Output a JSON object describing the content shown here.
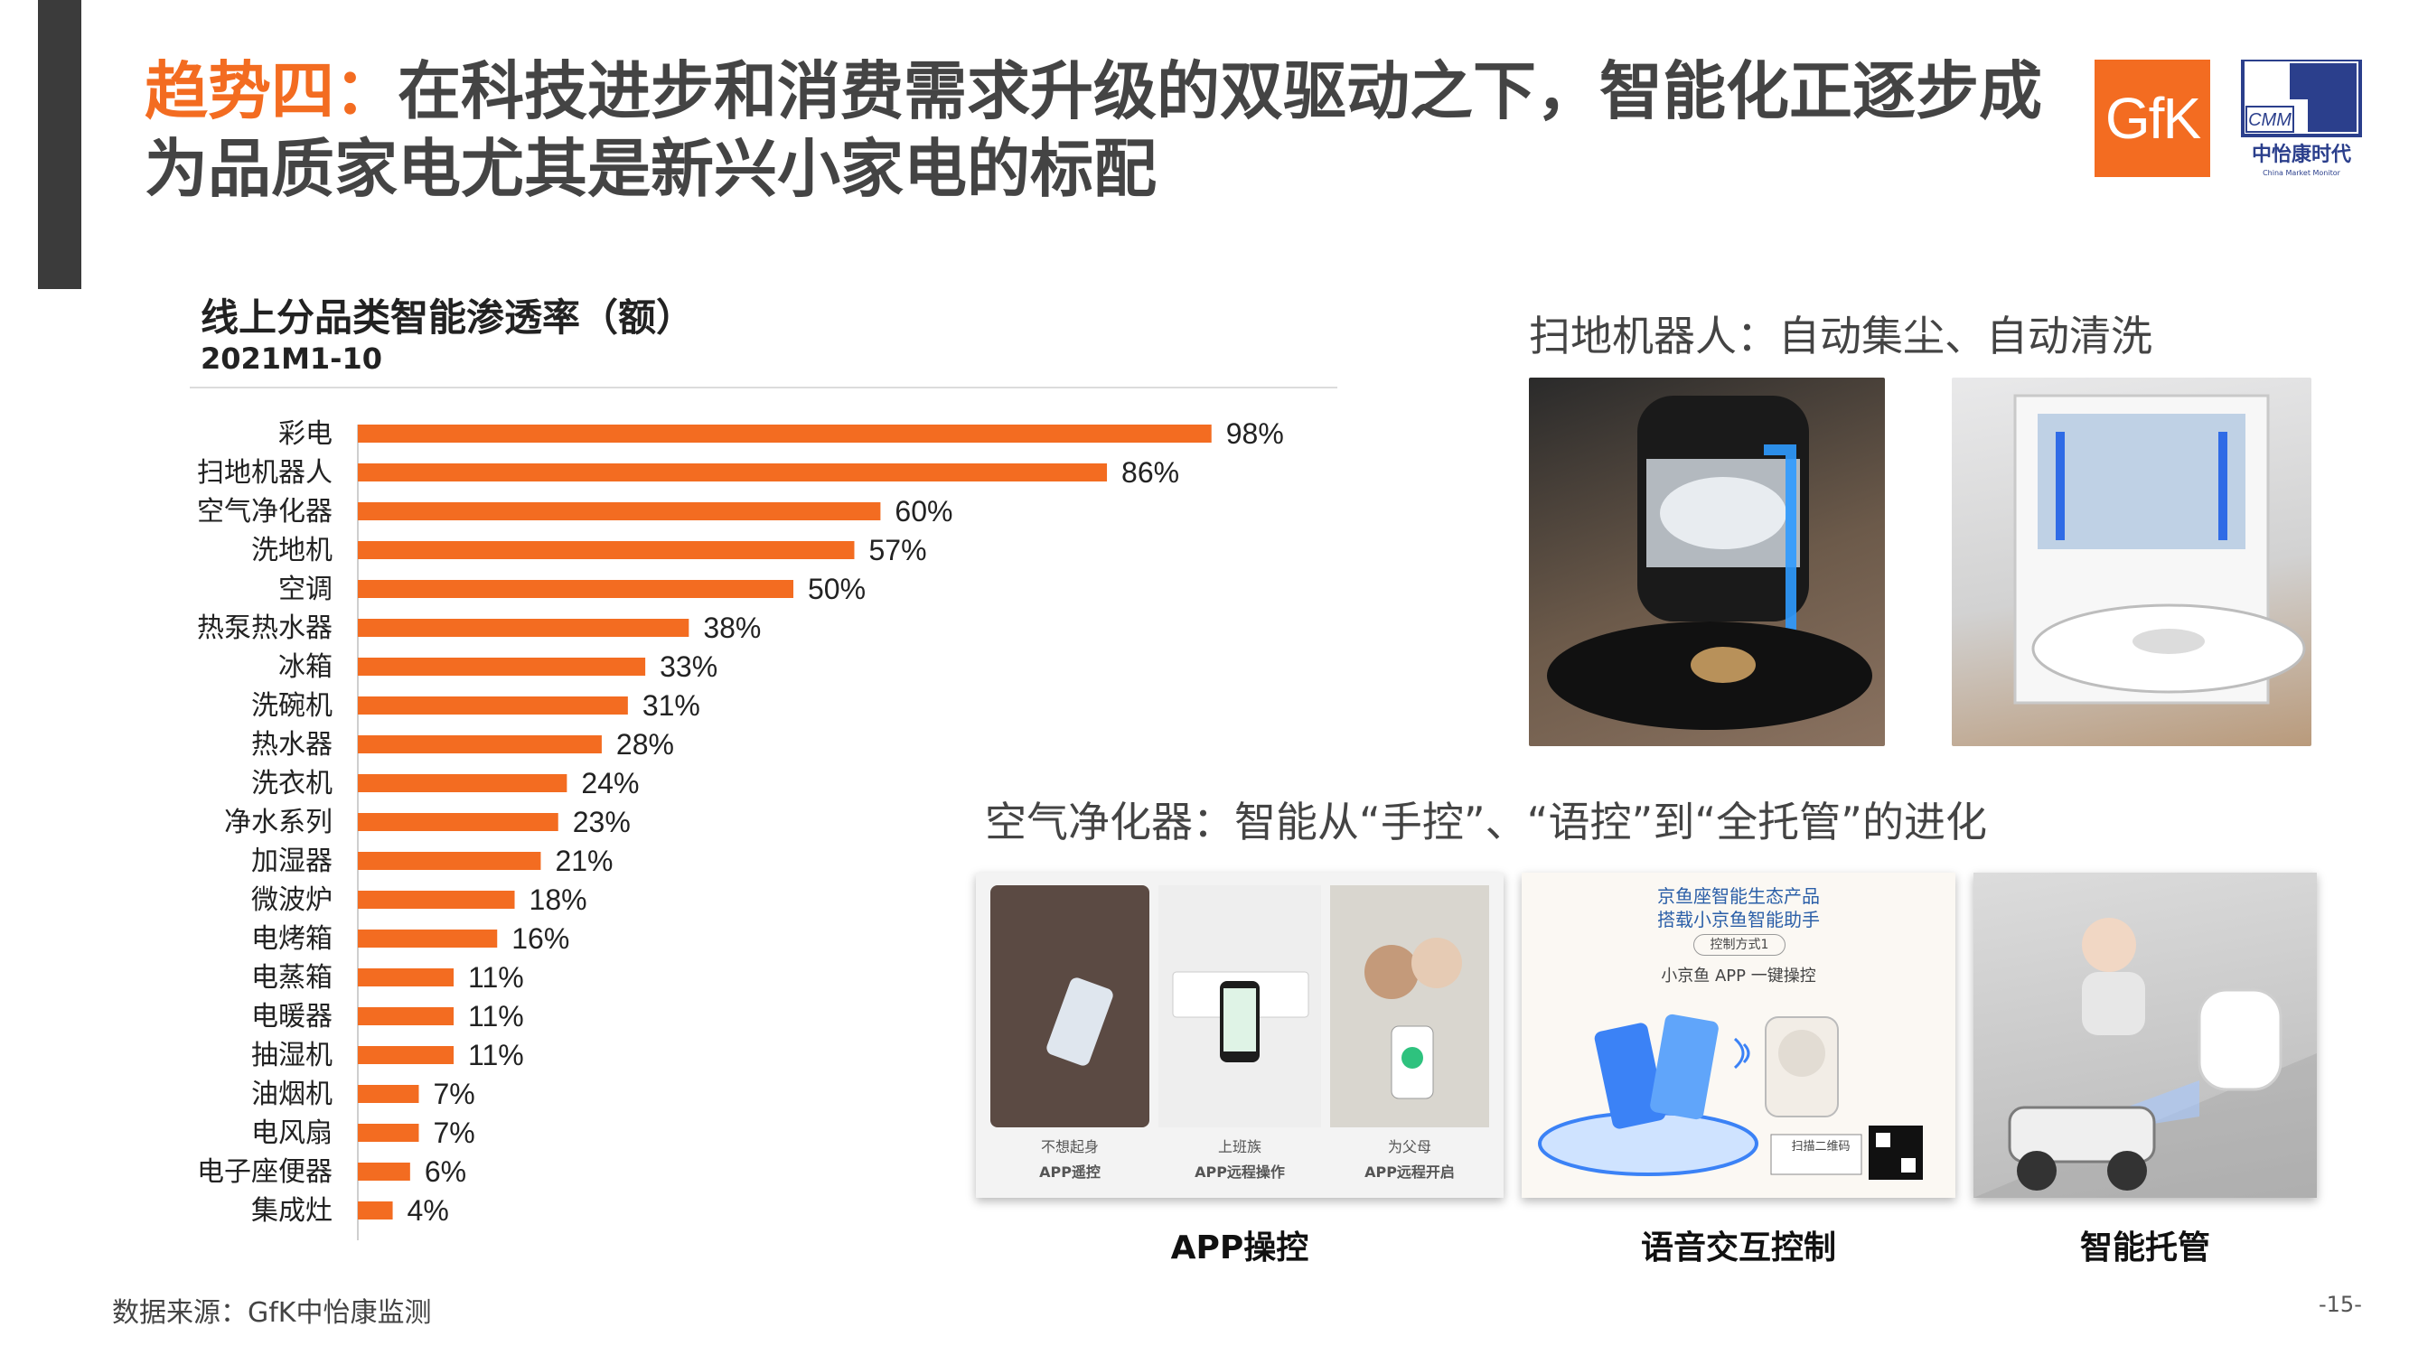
{
  "slide": {
    "title_highlight": "趋势四：",
    "title_rest": "在科技进步和消费需求升级的双驱动之下，智能化正逐步成为品质家电尤其是新兴小家电的标配",
    "logo_gfk": "GfK",
    "logo_cmm_abbr": "CMM",
    "logo_cmm_name": "中怡康时代",
    "logo_cmm_en": "China Market Monitor",
    "source": "数据来源：GfK中怡康监测",
    "page_number": "-15-"
  },
  "robot_section": {
    "heading": "扫地机器人：自动集尘、自动清洗"
  },
  "purifier_section": {
    "heading": "空气净化器：智能从“手控”、“语控”到“全托管”的进化",
    "app_card": {
      "label": "APP操控",
      "panels": [
        {
          "line1": "不想起身",
          "line2": "APP遥控"
        },
        {
          "line1": "上班族",
          "line2": "APP远程操作"
        },
        {
          "line1": "为父母",
          "line2": "APP远程开启"
        }
      ]
    },
    "voice_card": {
      "label": "语音交互控制",
      "header1": "京鱼座智能生态产品",
      "header2": "搭载小京鱼智能助手",
      "pill": "控制方式1",
      "sub": "小京鱼 APP 一键操控",
      "qr_label": "扫描二维码"
    },
    "auto_card": {
      "label": "智能托管"
    }
  },
  "colors": {
    "accent": "#f36c21",
    "dark_bar": "#3b3b3b",
    "cmm_blue": "#2b3f8c"
  },
  "chart_data": {
    "type": "bar",
    "orientation": "horizontal",
    "title": "线上分品类智能渗透率（额）",
    "subtitle": "2021M1-10",
    "categories": [
      "彩电",
      "扫地机器人",
      "空气净化器",
      "洗地机",
      "空调",
      "热泵热水器",
      "冰箱",
      "洗碗机",
      "热水器",
      "洗衣机",
      "净水系列",
      "加湿器",
      "微波炉",
      "电烤箱",
      "电蒸箱",
      "电暖器",
      "抽湿机",
      "油烟机",
      "电风扇",
      "电子座便器",
      "集成灶"
    ],
    "values": [
      98,
      86,
      60,
      57,
      50,
      38,
      33,
      31,
      28,
      24,
      23,
      21,
      18,
      16,
      11,
      11,
      11,
      7,
      7,
      6,
      4
    ],
    "unit": "%",
    "xlim": [
      0,
      100
    ],
    "grid": false,
    "legend": "none",
    "bar_color": "#f36c21"
  }
}
